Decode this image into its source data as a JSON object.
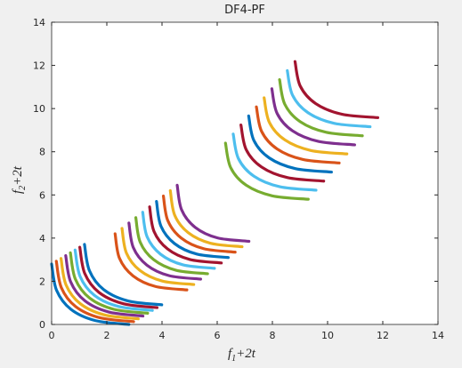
{
  "chart_data": {
    "type": "line",
    "title": "DF4-PF",
    "xlabel": {
      "base": "f",
      "sub": "1",
      "rest": "+2t"
    },
    "ylabel": {
      "base": "f",
      "sub": "2",
      "rest": "+2t"
    },
    "xlim": [
      0,
      14
    ],
    "ylim": [
      0,
      14
    ],
    "xticks": [
      0,
      2,
      4,
      6,
      8,
      10,
      12,
      14
    ],
    "yticks": [
      0,
      2,
      4,
      6,
      8,
      10,
      12,
      14
    ],
    "grid": false,
    "series": [
      {
        "color": "#0072BD",
        "x": [
          0,
          0.18,
          0.7,
          1.58,
          2.8
        ],
        "y": [
          2.8,
          1.58,
          0.7,
          0.18,
          0
        ]
      },
      {
        "color": "#D95319",
        "x": [
          0.17,
          0.35,
          0.87,
          1.75,
          2.97
        ],
        "y": [
          2.93,
          1.71,
          0.83,
          0.31,
          0.13
        ]
      },
      {
        "color": "#EDB120",
        "x": [
          0.34,
          0.52,
          1.04,
          1.92,
          3.14
        ],
        "y": [
          3.06,
          1.84,
          0.96,
          0.44,
          0.26
        ]
      },
      {
        "color": "#7E2F8E",
        "x": [
          0.51,
          0.69,
          1.21,
          2.09,
          3.31
        ],
        "y": [
          3.19,
          1.97,
          1.09,
          0.57,
          0.39
        ]
      },
      {
        "color": "#77AC30",
        "x": [
          0.68,
          0.86,
          1.38,
          2.26,
          3.48
        ],
        "y": [
          3.32,
          2.1,
          1.22,
          0.7,
          0.52
        ]
      },
      {
        "color": "#4DBEEE",
        "x": [
          0.85,
          1.03,
          1.55,
          2.43,
          3.65
        ],
        "y": [
          3.45,
          2.23,
          1.35,
          0.83,
          0.65
        ]
      },
      {
        "color": "#A2142F",
        "x": [
          1.02,
          1.2,
          1.72,
          2.6,
          3.82
        ],
        "y": [
          3.58,
          2.36,
          1.48,
          0.96,
          0.78
        ]
      },
      {
        "color": "#0072BD",
        "x": [
          1.19,
          1.37,
          1.89,
          2.77,
          3.99
        ],
        "y": [
          3.71,
          2.49,
          1.61,
          1.09,
          0.91
        ]
      },
      {
        "color": "#D95319",
        "x": [
          2.3,
          2.46,
          2.95,
          3.76,
          4.9
        ],
        "y": [
          4.2,
          3.06,
          2.25,
          1.76,
          1.6
        ]
      },
      {
        "color": "#EDB120",
        "x": [
          2.55,
          2.71,
          3.2,
          4.01,
          5.15
        ],
        "y": [
          4.45,
          3.31,
          2.5,
          2.01,
          1.85
        ]
      },
      {
        "color": "#7E2F8E",
        "x": [
          2.8,
          2.96,
          3.45,
          4.26,
          5.4
        ],
        "y": [
          4.7,
          3.56,
          2.75,
          2.26,
          2.1
        ]
      },
      {
        "color": "#77AC30",
        "x": [
          3.05,
          3.21,
          3.7,
          4.51,
          5.65
        ],
        "y": [
          4.95,
          3.81,
          3.0,
          2.51,
          2.35
        ]
      },
      {
        "color": "#4DBEEE",
        "x": [
          3.3,
          3.46,
          3.95,
          4.76,
          5.9
        ],
        "y": [
          5.2,
          4.06,
          3.25,
          2.76,
          2.6
        ]
      },
      {
        "color": "#A2142F",
        "x": [
          3.55,
          3.71,
          4.2,
          5.01,
          6.15
        ],
        "y": [
          5.45,
          4.31,
          3.5,
          3.01,
          2.85
        ]
      },
      {
        "color": "#0072BD",
        "x": [
          3.8,
          3.96,
          4.45,
          5.26,
          6.4
        ],
        "y": [
          5.7,
          4.56,
          3.75,
          3.26,
          3.1
        ]
      },
      {
        "color": "#D95319",
        "x": [
          4.05,
          4.21,
          4.7,
          5.51,
          6.65
        ],
        "y": [
          5.95,
          4.81,
          4.0,
          3.51,
          3.35
        ]
      },
      {
        "color": "#EDB120",
        "x": [
          4.3,
          4.46,
          4.95,
          5.76,
          6.9
        ],
        "y": [
          6.2,
          5.06,
          4.25,
          3.76,
          3.6
        ]
      },
      {
        "color": "#7E2F8E",
        "x": [
          4.55,
          4.71,
          5.2,
          6.01,
          7.15
        ],
        "y": [
          6.45,
          5.31,
          4.5,
          4.01,
          3.85
        ]
      },
      {
        "color": "#77AC30",
        "x": [
          6.3,
          6.49,
          7.05,
          7.99,
          9.3
        ],
        "y": [
          8.4,
          7.26,
          6.45,
          5.96,
          5.8
        ]
      },
      {
        "color": "#4DBEEE",
        "x": [
          6.58,
          6.77,
          7.33,
          8.27,
          9.58
        ],
        "y": [
          8.82,
          7.68,
          6.87,
          6.38,
          6.22
        ]
      },
      {
        "color": "#A2142F",
        "x": [
          6.86,
          7.05,
          7.61,
          8.55,
          9.86
        ],
        "y": [
          9.24,
          8.1,
          7.29,
          6.8,
          6.64
        ]
      },
      {
        "color": "#0072BD",
        "x": [
          7.14,
          7.33,
          7.89,
          8.83,
          10.14
        ],
        "y": [
          9.66,
          8.52,
          7.71,
          7.22,
          7.06
        ]
      },
      {
        "color": "#D95319",
        "x": [
          7.42,
          7.61,
          8.17,
          9.11,
          10.42
        ],
        "y": [
          10.08,
          8.94,
          8.13,
          7.64,
          7.48
        ]
      },
      {
        "color": "#EDB120",
        "x": [
          7.7,
          7.89,
          8.45,
          9.39,
          10.7
        ],
        "y": [
          10.5,
          9.36,
          8.55,
          8.06,
          7.9
        ]
      },
      {
        "color": "#7E2F8E",
        "x": [
          7.98,
          8.17,
          8.73,
          9.67,
          10.98
        ],
        "y": [
          10.92,
          9.78,
          8.97,
          8.48,
          8.32
        ]
      },
      {
        "color": "#77AC30",
        "x": [
          8.26,
          8.45,
          9.01,
          9.95,
          11.26
        ],
        "y": [
          11.34,
          10.2,
          9.39,
          8.9,
          8.74
        ]
      },
      {
        "color": "#4DBEEE",
        "x": [
          8.54,
          8.73,
          9.29,
          10.23,
          11.54
        ],
        "y": [
          11.76,
          10.62,
          9.81,
          9.32,
          9.16
        ]
      },
      {
        "color": "#A2142F",
        "x": [
          8.82,
          9.01,
          9.57,
          10.51,
          11.82
        ],
        "y": [
          12.18,
          11.04,
          10.23,
          9.74,
          9.58
        ]
      }
    ]
  }
}
